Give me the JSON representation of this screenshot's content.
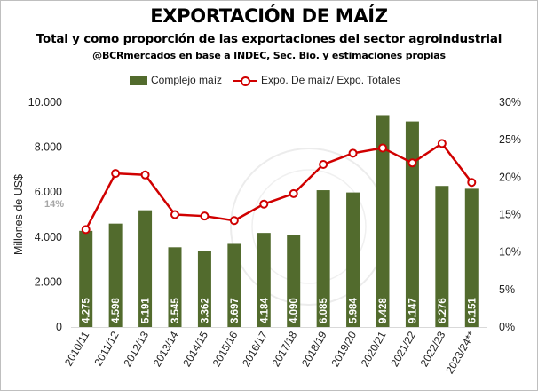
{
  "title": "EXPORTACIÓN DE MAÍZ",
  "subtitle": "Total y como proporción de las exportaciones del sector agroindustrial",
  "source": "@BCRmercados en base a INDEC, Sec. Bio. y estimaciones propias",
  "colors": {
    "bar": "#526b2d",
    "line": "#d00000"
  },
  "chart_data": {
    "type": "bar",
    "categories": [
      "2010/11",
      "2011/12",
      "2012/13",
      "2013/14",
      "2014/15",
      "2015/16",
      "2016/17",
      "2017/18",
      "2018/19",
      "2019/20",
      "2020/21",
      "2021/22",
      "2022/23",
      "2023/24**"
    ],
    "series": [
      {
        "name": "Complejo maíz",
        "type": "bar",
        "axis": "left",
        "values": [
          4275,
          4598,
          5191,
          3545,
          3362,
          3697,
          4184,
          4090,
          6085,
          5984,
          9428,
          9147,
          6276,
          6151
        ],
        "data_labels": [
          "4.275",
          "4.598",
          "5.191",
          "3.545",
          "3.362",
          "3.697",
          "4.184",
          "4.090",
          "6.085",
          "5.984",
          "9.428",
          "9.147",
          "6.276",
          "6.151"
        ]
      },
      {
        "name": "Expo. De maíz/ Expo. Totales",
        "type": "line",
        "axis": "right",
        "values": [
          13.0,
          20.5,
          20.3,
          15.0,
          14.8,
          14.2,
          16.4,
          17.8,
          21.7,
          23.2,
          23.9,
          21.9,
          24.5,
          19.3
        ]
      }
    ],
    "ylabel": "Millones de US$",
    "ylim": [
      0,
      10000
    ],
    "yticks": [
      0,
      2000,
      4000,
      6000,
      8000,
      10000
    ],
    "ytick_labels": [
      "0",
      "2.000",
      "4.000",
      "6.000",
      "8.000",
      "10.000"
    ],
    "y2lim": [
      0,
      30
    ],
    "y2ticks": [
      0,
      5,
      10,
      15,
      20,
      25,
      30
    ],
    "y2tick_labels": [
      "0%",
      "5%",
      "10%",
      "15%",
      "20%",
      "25%",
      "30%"
    ],
    "annotations": [
      {
        "text": "14%"
      }
    ],
    "legend_position": "top",
    "grid": false
  }
}
